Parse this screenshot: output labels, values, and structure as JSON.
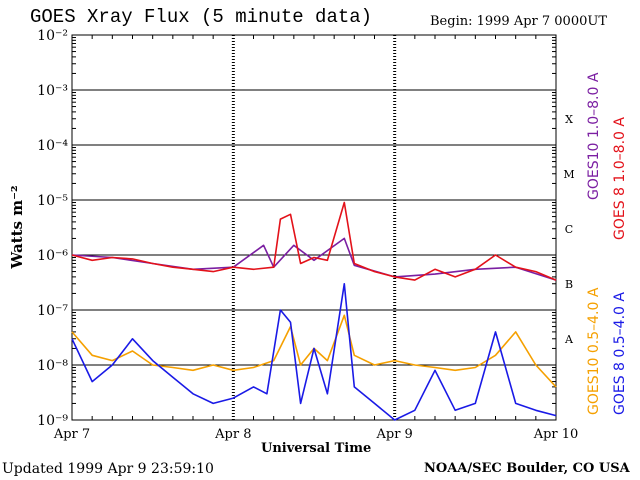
{
  "header": {
    "title": "GOES Xray Flux (5 minute data)",
    "begin": "Begin:  1999 Apr 7 0000UT"
  },
  "footer": {
    "updated": "Updated 1999 Apr  9 23:59:10",
    "credit": "NOAA/SEC Boulder, CO USA"
  },
  "colors": {
    "goes10_long": "#7b1fa2",
    "goes8_long": "#e3121a",
    "goes10_short": "#f5a000",
    "goes8_short": "#1a1ae6",
    "grid": "#000000"
  },
  "chart_data": {
    "type": "line",
    "title": "GOES Xray Flux (5 minute data)",
    "xlabel": "Universal Time",
    "ylabel": "Watts m⁻²",
    "yscale": "log",
    "ylim": [
      1e-09,
      0.01
    ],
    "y_ticks": [
      {
        "value": 0.01,
        "label": "10⁻²"
      },
      {
        "value": 0.001,
        "label": "10⁻³"
      },
      {
        "value": 0.0001,
        "label": "10⁻⁴"
      },
      {
        "value": 1e-05,
        "label": "10⁻⁵"
      },
      {
        "value": 1e-06,
        "label": "10⁻⁶"
      },
      {
        "value": 1e-07,
        "label": "10⁻⁷"
      },
      {
        "value": 1e-08,
        "label": "10⁻⁸"
      },
      {
        "value": 1e-09,
        "label": "10⁻⁹"
      }
    ],
    "xlim": [
      "1999-04-07T00:00",
      "1999-04-10T00:00"
    ],
    "x_ticks": [
      "Apr 7",
      "Apr 8",
      "Apr 9",
      "Apr 10"
    ],
    "flare_classes": [
      {
        "label": "X",
        "value": 0.0003
      },
      {
        "label": "M",
        "value": 3e-05
      },
      {
        "label": "C",
        "value": 3e-06
      },
      {
        "label": "B",
        "value": 3e-07
      },
      {
        "label": "A",
        "value": 3e-08
      }
    ],
    "grid": true,
    "legend_position": "right",
    "series": [
      {
        "name": "GOES10 1.0–8.0 A",
        "color": "#7b1fa2",
        "x": [
          "1999-04-07T00:00",
          "1999-04-07T06:00",
          "1999-04-07T12:00",
          "1999-04-07T18:00",
          "1999-04-08T00:00",
          "1999-04-08T04:30",
          "1999-04-08T06:00",
          "1999-04-08T09:00",
          "1999-04-08T12:00",
          "1999-04-08T16:30",
          "1999-04-08T18:00",
          "1999-04-09T00:00",
          "1999-04-09T06:00",
          "1999-04-09T12:00",
          "1999-04-09T18:00",
          "1999-04-10T00:00"
        ],
        "values": [
          1e-06,
          9e-07,
          7e-07,
          5.5e-07,
          6e-07,
          1.5e-06,
          6e-07,
          1.5e-06,
          8e-07,
          2e-06,
          6.5e-07,
          4e-07,
          4.5e-07,
          5.5e-07,
          6e-07,
          3.5e-07
        ]
      },
      {
        "name": "GOES 8 1.0–8.0 A",
        "color": "#e3121a",
        "x": [
          "1999-04-07T00:00",
          "1999-04-07T03:00",
          "1999-04-07T06:00",
          "1999-04-07T09:00",
          "1999-04-07T12:00",
          "1999-04-07T15:00",
          "1999-04-07T18:00",
          "1999-04-07T21:00",
          "1999-04-08T00:00",
          "1999-04-08T03:00",
          "1999-04-08T06:00",
          "1999-04-08T07:00",
          "1999-04-08T08:30",
          "1999-04-08T10:00",
          "1999-04-08T12:00",
          "1999-04-08T14:00",
          "1999-04-08T16:30",
          "1999-04-08T18:00",
          "1999-04-08T21:00",
          "1999-04-09T00:00",
          "1999-04-09T03:00",
          "1999-04-09T06:00",
          "1999-04-09T09:00",
          "1999-04-09T12:00",
          "1999-04-09T15:00",
          "1999-04-09T18:00",
          "1999-04-09T21:00",
          "1999-04-10T00:00"
        ],
        "values": [
          1e-06,
          8e-07,
          9e-07,
          8.5e-07,
          7e-07,
          6e-07,
          5.5e-07,
          5e-07,
          6e-07,
          5.5e-07,
          6e-07,
          4.5e-06,
          5.5e-06,
          7e-07,
          9e-07,
          8e-07,
          9e-06,
          7e-07,
          5e-07,
          4e-07,
          3.5e-07,
          5.5e-07,
          4e-07,
          5.5e-07,
          1e-06,
          6e-07,
          5e-07,
          3.5e-07
        ]
      },
      {
        "name": "GOES10 0.5–4.0 A",
        "color": "#f5a000",
        "x": [
          "1999-04-07T00:00",
          "1999-04-07T03:00",
          "1999-04-07T06:00",
          "1999-04-07T09:00",
          "1999-04-07T12:00",
          "1999-04-07T15:00",
          "1999-04-07T18:00",
          "1999-04-07T21:00",
          "1999-04-08T00:00",
          "1999-04-08T03:00",
          "1999-04-08T06:00",
          "1999-04-08T08:30",
          "1999-04-08T10:00",
          "1999-04-08T12:00",
          "1999-04-08T14:00",
          "1999-04-08T16:30",
          "1999-04-08T18:00",
          "1999-04-08T21:00",
          "1999-04-09T00:00",
          "1999-04-09T03:00",
          "1999-04-09T06:00",
          "1999-04-09T09:00",
          "1999-04-09T12:00",
          "1999-04-09T15:00",
          "1999-04-09T18:00",
          "1999-04-09T21:00",
          "1999-04-10T00:00"
        ],
        "values": [
          4e-08,
          1.5e-08,
          1.2e-08,
          1.8e-08,
          1e-08,
          9e-09,
          8e-09,
          1e-08,
          8e-09,
          9e-09,
          1.2e-08,
          5e-08,
          1e-08,
          2e-08,
          1.2e-08,
          8e-08,
          1.5e-08,
          1e-08,
          1.2e-08,
          1e-08,
          9e-09,
          8e-09,
          9e-09,
          1.5e-08,
          4e-08,
          1e-08,
          4e-09
        ]
      },
      {
        "name": "GOES 8 0.5–4.0 A",
        "color": "#1a1ae6",
        "x": [
          "1999-04-07T00:00",
          "1999-04-07T03:00",
          "1999-04-07T06:00",
          "1999-04-07T09:00",
          "1999-04-07T12:00",
          "1999-04-07T15:00",
          "1999-04-07T18:00",
          "1999-04-07T21:00",
          "1999-04-08T00:00",
          "1999-04-08T03:00",
          "1999-04-08T05:00",
          "1999-04-08T07:00",
          "1999-04-08T08:30",
          "1999-04-08T10:00",
          "1999-04-08T12:00",
          "1999-04-08T14:00",
          "1999-04-08T16:30",
          "1999-04-08T18:00",
          "1999-04-08T21:00",
          "1999-04-09T00:00",
          "1999-04-09T03:00",
          "1999-04-09T06:00",
          "1999-04-09T09:00",
          "1999-04-09T12:00",
          "1999-04-09T15:00",
          "1999-04-09T18:00",
          "1999-04-09T21:00",
          "1999-04-10T00:00"
        ],
        "values": [
          3e-08,
          5e-09,
          1e-08,
          3e-08,
          1.2e-08,
          6e-09,
          3e-09,
          2e-09,
          2.5e-09,
          4e-09,
          3e-09,
          1e-07,
          6e-08,
          2e-09,
          2e-08,
          3e-09,
          3e-07,
          4e-09,
          2e-09,
          1e-09,
          1.5e-09,
          8e-09,
          1.5e-09,
          2e-09,
          4e-08,
          2e-09,
          1.5e-09,
          1.2e-09
        ]
      }
    ]
  }
}
